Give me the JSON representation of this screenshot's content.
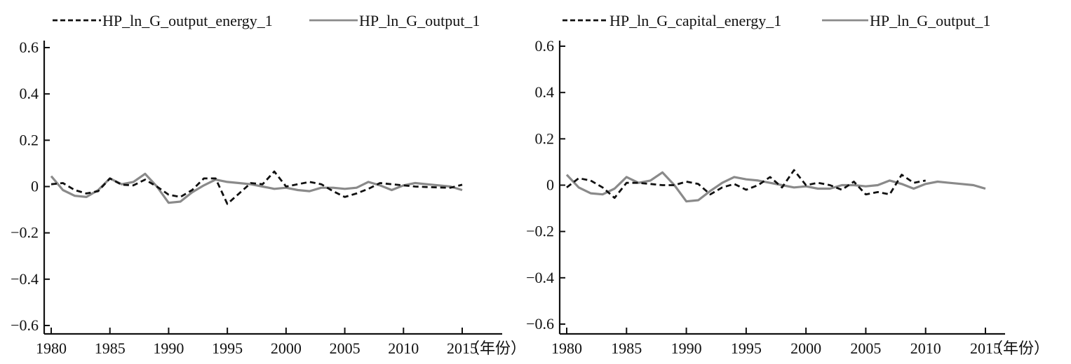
{
  "colors": {
    "solid_series": "#8a8a8a",
    "dashed_series": "#111111",
    "axis": "#111111"
  },
  "chart_data": [
    {
      "type": "line",
      "x_unit_label": "（年份）",
      "xlim": [
        1980,
        2015
      ],
      "ylim": [
        -0.6,
        0.6
      ],
      "x_ticks": [
        1980,
        1985,
        1990,
        1995,
        2000,
        2005,
        2010,
        2015
      ],
      "y_ticks": [
        0.6,
        0.4,
        0.2,
        0,
        -0.2,
        -0.4,
        -0.6
      ],
      "y_tick_labels": [
        "0.6",
        "0.4",
        "0.2",
        "0",
        "−0.2",
        "−0.4",
        "−0.6"
      ],
      "legend_position": "top",
      "series": [
        {
          "name": "HP_ln_G_output_energy_1",
          "style": "dashed",
          "color": "#111111",
          "x": [
            1980,
            1981,
            1982,
            1983,
            1984,
            1985,
            1986,
            1987,
            1988,
            1989,
            1990,
            1991,
            1992,
            1993,
            1994,
            1995,
            1996,
            1997,
            1998,
            1999,
            2000,
            2001,
            2002,
            2003,
            2004,
            2005,
            2006,
            2007,
            2008,
            2009,
            2010,
            2011,
            2012,
            2013,
            2014,
            2015
          ],
          "y": [
            0.01,
            0.015,
            -0.015,
            -0.03,
            -0.02,
            0.035,
            0.008,
            0.005,
            0.03,
            0.0,
            -0.035,
            -0.045,
            -0.015,
            0.035,
            0.035,
            -0.075,
            -0.03,
            0.015,
            0.01,
            0.065,
            0.0,
            0.01,
            0.02,
            0.01,
            -0.02,
            -0.045,
            -0.03,
            -0.01,
            0.015,
            0.01,
            0.005,
            0.0,
            -0.002,
            -0.004,
            -0.005,
            0.008
          ]
        },
        {
          "name": "HP_ln_G_output_1",
          "style": "solid",
          "color": "#8a8a8a",
          "x": [
            1980,
            1981,
            1982,
            1983,
            1984,
            1985,
            1986,
            1987,
            1988,
            1989,
            1990,
            1991,
            1992,
            1993,
            1994,
            1995,
            1996,
            1997,
            1998,
            1999,
            2000,
            2001,
            2002,
            2003,
            2004,
            2005,
            2006,
            2007,
            2008,
            2009,
            2010,
            2011,
            2012,
            2013,
            2014,
            2015
          ],
          "y": [
            0.045,
            -0.015,
            -0.04,
            -0.045,
            -0.015,
            0.035,
            0.01,
            0.02,
            0.055,
            0.0,
            -0.07,
            -0.065,
            -0.025,
            0.005,
            0.03,
            0.02,
            0.015,
            0.01,
            0.0,
            -0.01,
            -0.005,
            -0.015,
            -0.02,
            -0.005,
            -0.005,
            -0.01,
            -0.005,
            0.02,
            0.005,
            -0.015,
            0.005,
            0.015,
            0.01,
            0.005,
            0.0,
            -0.015
          ]
        }
      ]
    },
    {
      "type": "line",
      "x_unit_label": "（年份）",
      "xlim": [
        1980,
        2015
      ],
      "ylim": [
        -0.6,
        0.6
      ],
      "x_ticks": [
        1980,
        1985,
        1990,
        1995,
        2000,
        2005,
        2010,
        2015
      ],
      "y_ticks": [
        0.6,
        0.4,
        0.2,
        0,
        -0.2,
        -0.4,
        -0.6
      ],
      "y_tick_labels": [
        "0.6",
        "0.4",
        "0.2",
        "0",
        "−0.2",
        "−0.4",
        "−0.6"
      ],
      "legend_position": "top",
      "series": [
        {
          "name": "HP_ln_G_capital_energy_1",
          "style": "dashed",
          "color": "#111111",
          "x": [
            1980,
            1981,
            1982,
            1983,
            1984,
            1985,
            1986,
            1987,
            1988,
            1989,
            1990,
            1991,
            1992,
            1993,
            1994,
            1995,
            1996,
            1997,
            1998,
            1999,
            2000,
            2001,
            2002,
            2003,
            2004,
            2005,
            2006,
            2007,
            2008,
            2009,
            2010
          ],
          "y": [
            -0.01,
            0.03,
            0.02,
            -0.01,
            -0.055,
            0.01,
            0.01,
            0.005,
            0.0,
            0.0,
            0.015,
            0.005,
            -0.04,
            -0.01,
            0.005,
            -0.02,
            0.0,
            0.035,
            -0.01,
            0.065,
            0.0,
            0.01,
            0.0,
            -0.02,
            0.015,
            -0.04,
            -0.03,
            -0.04,
            0.045,
            0.01,
            0.02
          ]
        },
        {
          "name": "HP_ln_G_output_1",
          "style": "solid",
          "color": "#8a8a8a",
          "x": [
            1980,
            1981,
            1982,
            1983,
            1984,
            1985,
            1986,
            1987,
            1988,
            1989,
            1990,
            1991,
            1992,
            1993,
            1994,
            1995,
            1996,
            1997,
            1998,
            1999,
            2000,
            2001,
            2002,
            2003,
            2004,
            2005,
            2006,
            2007,
            2008,
            2009,
            2010,
            2011,
            2012,
            2013,
            2014,
            2015
          ],
          "y": [
            0.045,
            -0.01,
            -0.035,
            -0.04,
            -0.015,
            0.035,
            0.01,
            0.02,
            0.055,
            0.0,
            -0.07,
            -0.065,
            -0.025,
            0.01,
            0.035,
            0.025,
            0.02,
            0.01,
            0.0,
            -0.01,
            -0.005,
            -0.015,
            -0.015,
            0.0,
            0.0,
            -0.005,
            0.0,
            0.02,
            0.005,
            -0.015,
            0.005,
            0.015,
            0.01,
            0.005,
            0.0,
            -0.015
          ]
        }
      ]
    }
  ]
}
